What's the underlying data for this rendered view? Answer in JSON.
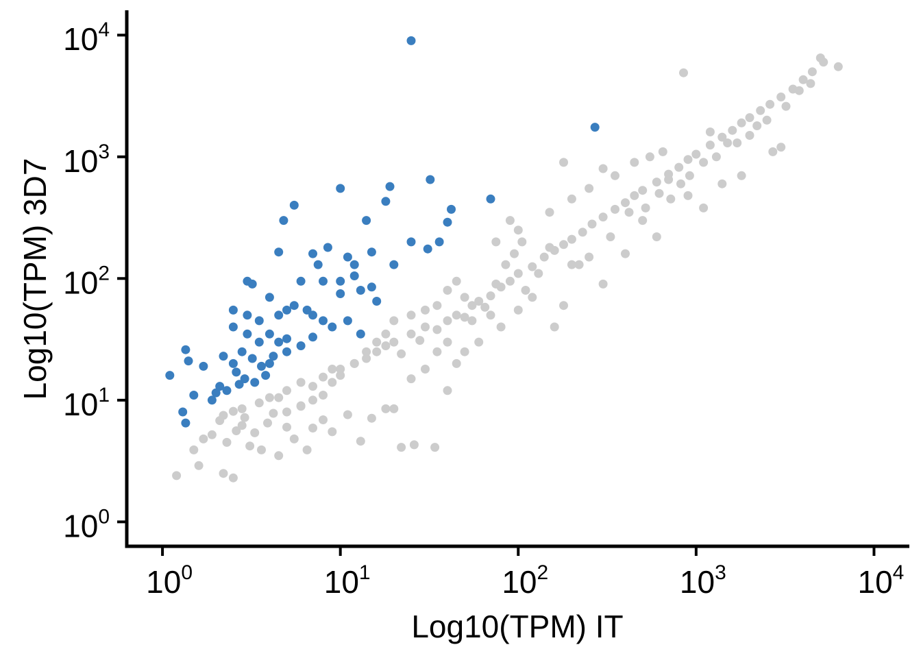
{
  "chart_data": {
    "type": "scatter",
    "xlabel": "Log10(TPM) IT",
    "ylabel": "Log10(TPM) 3D7",
    "x_scale": "log10",
    "y_scale": "log10",
    "xlim": [
      0.63,
      15800
    ],
    "ylim": [
      0.63,
      16000
    ],
    "x_ticks": [
      {
        "value": 1,
        "base": "10",
        "exp": "0"
      },
      {
        "value": 10,
        "base": "10",
        "exp": "1"
      },
      {
        "value": 100,
        "base": "10",
        "exp": "2"
      },
      {
        "value": 1000,
        "base": "10",
        "exp": "3"
      },
      {
        "value": 10000,
        "base": "10",
        "exp": "4"
      }
    ],
    "y_ticks": [
      {
        "value": 1,
        "base": "10",
        "exp": "0"
      },
      {
        "value": 10,
        "base": "10",
        "exp": "1"
      },
      {
        "value": 100,
        "base": "10",
        "exp": "2"
      },
      {
        "value": 1000,
        "base": "10",
        "exp": "3"
      },
      {
        "value": 10000,
        "base": "10",
        "exp": "4"
      }
    ],
    "grid": false,
    "legend": "none",
    "colors": {
      "background_genes": "#cccccc",
      "highlighted_genes": "#3a7ebf",
      "axis": "#000000"
    },
    "series": [
      {
        "color": "#cccccc",
        "points": [
          [
            1.2,
            2.4
          ],
          [
            1.6,
            2.9
          ],
          [
            1.5,
            3.9
          ],
          [
            1.7,
            4.8
          ],
          [
            1.9,
            5.2
          ],
          [
            2.1,
            6.8
          ],
          [
            2.2,
            2.5
          ],
          [
            2.5,
            2.3
          ],
          [
            2.3,
            4.5
          ],
          [
            2.6,
            5.6
          ],
          [
            2.8,
            6.2
          ],
          [
            2.2,
            7.5
          ],
          [
            2.5,
            8.1
          ],
          [
            2.9,
            7.2
          ],
          [
            3.1,
            4.2
          ],
          [
            3.3,
            5.4
          ],
          [
            3.6,
            3.9
          ],
          [
            3.9,
            6.5
          ],
          [
            4.5,
            3.5
          ],
          [
            4.2,
            7.8
          ],
          [
            5.0,
            6.0
          ],
          [
            5.5,
            4.8
          ],
          [
            6.0,
            8.9
          ],
          [
            6.5,
            3.9
          ],
          [
            7.0,
            5.9
          ],
          [
            8.0,
            6.9
          ],
          [
            9.0,
            5.5
          ],
          [
            11.0,
            7.6
          ],
          [
            13.0,
            4.6
          ],
          [
            15.0,
            7.1
          ],
          [
            18.0,
            8.5
          ],
          [
            22.0,
            4.1
          ],
          [
            26.0,
            4.3
          ],
          [
            34.0,
            4.1
          ],
          [
            40.0,
            12.0
          ],
          [
            20.0,
            8.5
          ],
          [
            2.8,
            8.5
          ],
          [
            3.5,
            9.5
          ],
          [
            4.0,
            10.5
          ],
          [
            5.0,
            12.0
          ],
          [
            6.0,
            14.0
          ],
          [
            7.0,
            13.0
          ],
          [
            8.0,
            15.5
          ],
          [
            9.0,
            18.0
          ],
          [
            10.0,
            16.0
          ],
          [
            12.0,
            20.0
          ],
          [
            14.0,
            22.0
          ],
          [
            16.0,
            25.0
          ],
          [
            18.0,
            28.0
          ],
          [
            20.0,
            30.0
          ],
          [
            22.0,
            24.0
          ],
          [
            25.0,
            35.0
          ],
          [
            28.0,
            31.0
          ],
          [
            30.0,
            40.0
          ],
          [
            35.0,
            38.0
          ],
          [
            40.0,
            45.0
          ],
          [
            45.0,
            50.0
          ],
          [
            50.0,
            48.0
          ],
          [
            55.0,
            60.0
          ],
          [
            60.0,
            65.0
          ],
          [
            70.0,
            72.0
          ],
          [
            80.0,
            85.0
          ],
          [
            90.0,
            95.0
          ],
          [
            100.0,
            110.0
          ],
          [
            120.0,
            125.0
          ],
          [
            140.0,
            150.0
          ],
          [
            160.0,
            170.0
          ],
          [
            180.0,
            190.0
          ],
          [
            200.0,
            210.0
          ],
          [
            230.0,
            240.0
          ],
          [
            260.0,
            280.0
          ],
          [
            300.0,
            320.0
          ],
          [
            350.0,
            370.0
          ],
          [
            400.0,
            420.0
          ],
          [
            450.0,
            480.0
          ],
          [
            500.0,
            530.0
          ],
          [
            600.0,
            620.0
          ],
          [
            700.0,
            720.0
          ],
          [
            800.0,
            820.0
          ],
          [
            900.0,
            950.0
          ],
          [
            1000.0,
            1050.0
          ],
          [
            1200.0,
            1250.0
          ],
          [
            1400.0,
            1450.0
          ],
          [
            1600.0,
            1650.0
          ],
          [
            1800.0,
            1900.0
          ],
          [
            2000.0,
            2100.0
          ],
          [
            2300.0,
            2400.0
          ],
          [
            2600.0,
            2700.0
          ],
          [
            3000.0,
            3100.0
          ],
          [
            3500.0,
            3600.0
          ],
          [
            4000.0,
            4300.0
          ],
          [
            4500.0,
            5000.0
          ],
          [
            5000.0,
            6500.0
          ],
          [
            6300.0,
            5500.0
          ],
          [
            850.0,
            4900.0
          ],
          [
            1200.0,
            1600.0
          ],
          [
            1500.0,
            1300.0
          ],
          [
            2200.0,
            1800.0
          ],
          [
            700.0,
            650.0
          ],
          [
            900.0,
            480.0
          ],
          [
            1100.0,
            380.0
          ],
          [
            1400.0,
            600.0
          ],
          [
            300.0,
            800.0
          ],
          [
            200.0,
            450.0
          ],
          [
            150.0,
            180.0
          ],
          [
            120.0,
            70.0
          ],
          [
            250.0,
            150.0
          ],
          [
            300.0,
            90.0
          ],
          [
            400.0,
            160.0
          ],
          [
            500.0,
            300.0
          ],
          [
            600.0,
            220.0
          ],
          [
            200.0,
            130.0
          ],
          [
            180.0,
            60.0
          ],
          [
            160.0,
            40.0
          ],
          [
            80.0,
            40.0
          ],
          [
            60.0,
            30.0
          ],
          [
            50.0,
            25.0
          ],
          [
            45.0,
            20.0
          ],
          [
            100.0,
            55.0
          ],
          [
            110.0,
            80.0
          ],
          [
            130.0,
            110.0
          ],
          [
            70.0,
            50.0
          ],
          [
            35.0,
            25.0
          ],
          [
            30.0,
            18.0
          ],
          [
            25.0,
            15.0
          ],
          [
            40.0,
            30.0
          ],
          [
            55.0,
            45.0
          ],
          [
            65.0,
            58.0
          ],
          [
            75.0,
            90.0
          ],
          [
            85.0,
            130.0
          ],
          [
            95.0,
            160.0
          ],
          [
            105.0,
            200.0
          ],
          [
            50.0,
            70.0
          ],
          [
            45.0,
            95.0
          ],
          [
            40.0,
            80.0
          ],
          [
            35.0,
            60.0
          ],
          [
            30.0,
            55.0
          ],
          [
            25.0,
            50.0
          ],
          [
            20.0,
            45.0
          ],
          [
            18.0,
            35.0
          ],
          [
            16.0,
            30.0
          ],
          [
            14.0,
            25.0
          ],
          [
            12.0,
            20.0
          ],
          [
            10.0,
            18.0
          ],
          [
            9.0,
            14.0
          ],
          [
            8.0,
            11.0
          ],
          [
            7.0,
            10.0
          ],
          [
            6.0,
            9.0
          ],
          [
            5.0,
            8.0
          ],
          [
            4.5,
            10.5
          ],
          [
            150.0,
            350.0
          ],
          [
            250.0,
            550.0
          ],
          [
            350.0,
            700.0
          ],
          [
            450.0,
            900.0
          ],
          [
            550.0,
            1000.0
          ],
          [
            650.0,
            1100.0
          ],
          [
            180.0,
            900.0
          ],
          [
            100.0,
            250.0
          ],
          [
            75.0,
            200.0
          ],
          [
            90.0,
            300.0
          ],
          [
            220.0,
            130.0
          ],
          [
            330.0,
            220.0
          ],
          [
            420.0,
            350.0
          ],
          [
            520.0,
            380.0
          ],
          [
            620.0,
            500.0
          ],
          [
            720.0,
            450.0
          ],
          [
            820.0,
            600.0
          ],
          [
            920.0,
            700.0
          ],
          [
            1100.0,
            900.0
          ],
          [
            1300.0,
            1000.0
          ],
          [
            1700.0,
            1300.0
          ],
          [
            2000.0,
            1500.0
          ],
          [
            2500.0,
            2000.0
          ],
          [
            3200.0,
            2600.0
          ],
          [
            3800.0,
            3500.0
          ],
          [
            4400.0,
            4000.0
          ],
          [
            2700.0,
            1100.0
          ],
          [
            3000.0,
            1200.0
          ],
          [
            1800.0,
            700.0
          ],
          [
            5200.0,
            6000.0
          ]
        ]
      },
      {
        "color": "#3a7ebf",
        "points": [
          [
            25.0,
            9000.0
          ],
          [
            270.0,
            1750.0
          ],
          [
            70.0,
            450.0
          ],
          [
            32.0,
            650.0
          ],
          [
            19.0,
            570.0
          ],
          [
            10.0,
            550.0
          ],
          [
            18.0,
            430.0
          ],
          [
            14.0,
            300.0
          ],
          [
            42.0,
            370.0
          ],
          [
            40.0,
            290.0
          ],
          [
            25.0,
            200.0
          ],
          [
            36.0,
            200.0
          ],
          [
            31.0,
            175.0
          ],
          [
            5.5,
            400.0
          ],
          [
            4.8,
            300.0
          ],
          [
            4.5,
            165.0
          ],
          [
            8.5,
            180.0
          ],
          [
            7.0,
            160.0
          ],
          [
            11.0,
            150.0
          ],
          [
            15.0,
            165.0
          ],
          [
            20.0,
            130.0
          ],
          [
            12.0,
            130.0
          ],
          [
            7.5,
            130.0
          ],
          [
            3.0,
            95.0
          ],
          [
            3.2,
            90.0
          ],
          [
            6.0,
            95.0
          ],
          [
            8.0,
            95.0
          ],
          [
            10.0,
            95.0
          ],
          [
            12.0,
            105.0
          ],
          [
            15.0,
            85.0
          ],
          [
            16.0,
            65.0
          ],
          [
            10.0,
            75.0
          ],
          [
            13.0,
            80.0
          ],
          [
            2.5,
            55.0
          ],
          [
            3.0,
            50.0
          ],
          [
            3.5,
            45.0
          ],
          [
            4.0,
            70.0
          ],
          [
            4.5,
            50.0
          ],
          [
            5.0,
            55.0
          ],
          [
            5.5,
            60.0
          ],
          [
            6.5,
            55.0
          ],
          [
            7.0,
            50.0
          ],
          [
            8.0,
            45.0
          ],
          [
            9.0,
            40.0
          ],
          [
            11.0,
            45.0
          ],
          [
            13.0,
            35.0
          ],
          [
            2.5,
            40.0
          ],
          [
            3.0,
            35.0
          ],
          [
            3.5,
            30.0
          ],
          [
            4.0,
            35.0
          ],
          [
            4.5,
            30.0
          ],
          [
            5.0,
            32.0
          ],
          [
            6.0,
            28.0
          ],
          [
            7.0,
            33.0
          ],
          [
            1.35,
            26.0
          ],
          [
            1.4,
            21.0
          ],
          [
            1.7,
            19.0
          ],
          [
            2.2,
            23.0
          ],
          [
            2.5,
            20.0
          ],
          [
            2.8,
            25.0
          ],
          [
            3.2,
            22.0
          ],
          [
            3.6,
            19.0
          ],
          [
            4.0,
            20.0
          ],
          [
            4.2,
            23.0
          ],
          [
            5.0,
            25.0
          ],
          [
            2.6,
            17.0
          ],
          [
            2.9,
            15.0
          ],
          [
            3.3,
            14.0
          ],
          [
            3.8,
            16.0
          ],
          [
            2.1,
            13.0
          ],
          [
            1.9,
            10.0
          ],
          [
            1.5,
            11.0
          ],
          [
            2.3,
            12.0
          ],
          [
            1.1,
            16.0
          ],
          [
            1.3,
            8.0
          ],
          [
            1.35,
            6.5
          ],
          [
            2.0,
            11.5
          ],
          [
            2.7,
            13.5
          ]
        ]
      }
    ]
  }
}
